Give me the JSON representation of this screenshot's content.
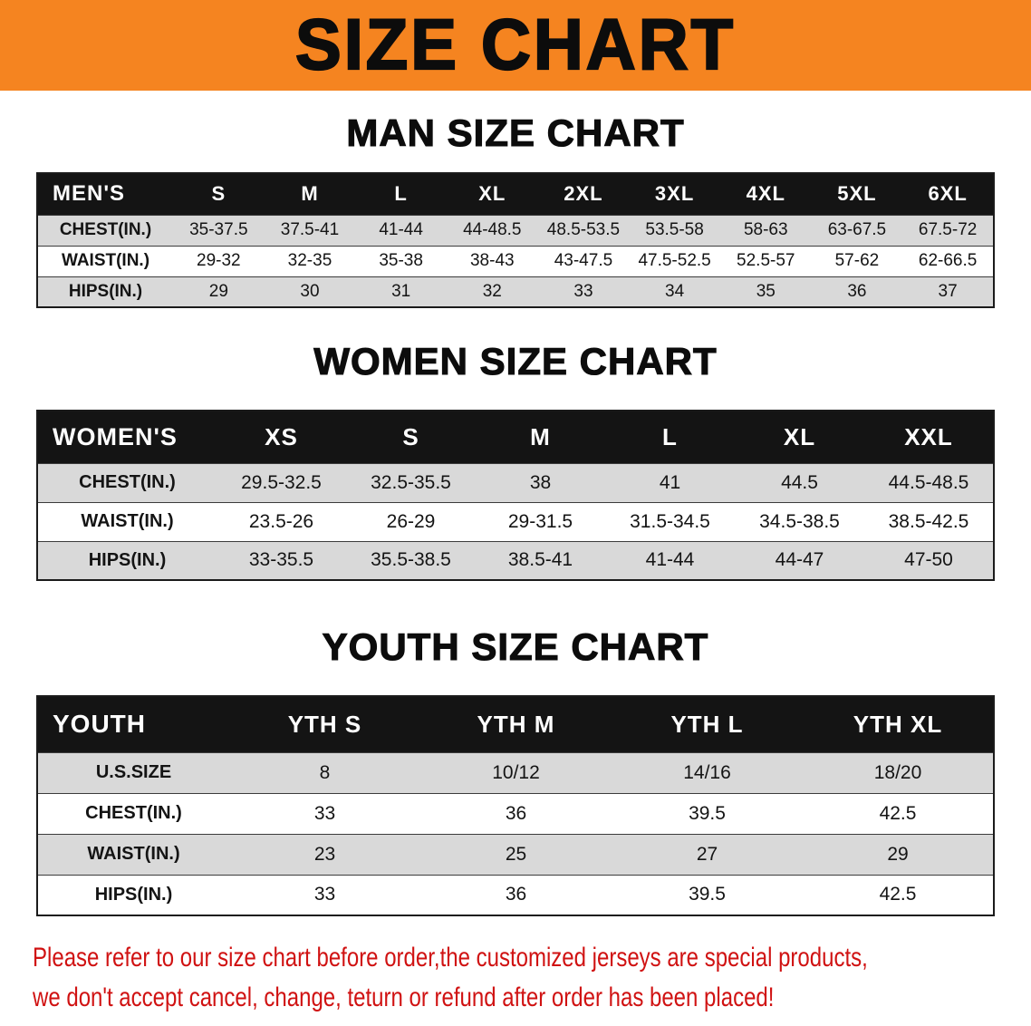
{
  "banner": {
    "title": "SIZE CHART"
  },
  "colors": {
    "accent_orange": "#f58420",
    "header_black": "#141414",
    "row_gray": "#d9d9d9",
    "disclaimer_red": "#d01212"
  },
  "sections": {
    "men": {
      "heading": "MAN SIZE CHART",
      "table": {
        "header": [
          "MEN'S",
          "S",
          "M",
          "L",
          "XL",
          "2XL",
          "3XL",
          "4XL",
          "5XL",
          "6XL"
        ],
        "rows": [
          [
            "CHEST(IN.)",
            "35-37.5",
            "37.5-41",
            "41-44",
            "44-48.5",
            "48.5-53.5",
            "53.5-58",
            "58-63",
            "63-67.5",
            "67.5-72"
          ],
          [
            "WAIST(IN.)",
            "29-32",
            "32-35",
            "35-38",
            "38-43",
            "43-47.5",
            "47.5-52.5",
            "52.5-57",
            "57-62",
            "62-66.5"
          ],
          [
            "HIPS(IN.)",
            "29",
            "30",
            "31",
            "32",
            "33",
            "34",
            "35",
            "36",
            "37"
          ]
        ]
      }
    },
    "women": {
      "heading": "WOMEN SIZE CHART",
      "table": {
        "header": [
          "WOMEN'S",
          "XS",
          "S",
          "M",
          "L",
          "XL",
          "XXL"
        ],
        "rows": [
          [
            "CHEST(IN.)",
            "29.5-32.5",
            "32.5-35.5",
            "38",
            "41",
            "44.5",
            "44.5-48.5"
          ],
          [
            "WAIST(IN.)",
            "23.5-26",
            "26-29",
            "29-31.5",
            "31.5-34.5",
            "34.5-38.5",
            "38.5-42.5"
          ],
          [
            "HIPS(IN.)",
            "33-35.5",
            "35.5-38.5",
            "38.5-41",
            "41-44",
            "44-47",
            "47-50"
          ]
        ]
      }
    },
    "youth": {
      "heading": "YOUTH SIZE CHART",
      "table": {
        "header": [
          "YOUTH",
          "YTH S",
          "YTH M",
          "YTH L",
          "YTH XL"
        ],
        "rows": [
          [
            "U.S.SIZE",
            "8",
            "10/12",
            "14/16",
            "18/20"
          ],
          [
            "CHEST(IN.)",
            "33",
            "36",
            "39.5",
            "42.5"
          ],
          [
            "WAIST(IN.)",
            "23",
            "25",
            "27",
            "29"
          ],
          [
            "HIPS(IN.)",
            "33",
            "36",
            "39.5",
            "42.5"
          ]
        ]
      }
    }
  },
  "disclaimer": {
    "line1": "Please refer to our size chart before order,the customized jerseys are special products,",
    "line2": "we don't accept cancel, change, teturn or refund after order has been placed!"
  }
}
